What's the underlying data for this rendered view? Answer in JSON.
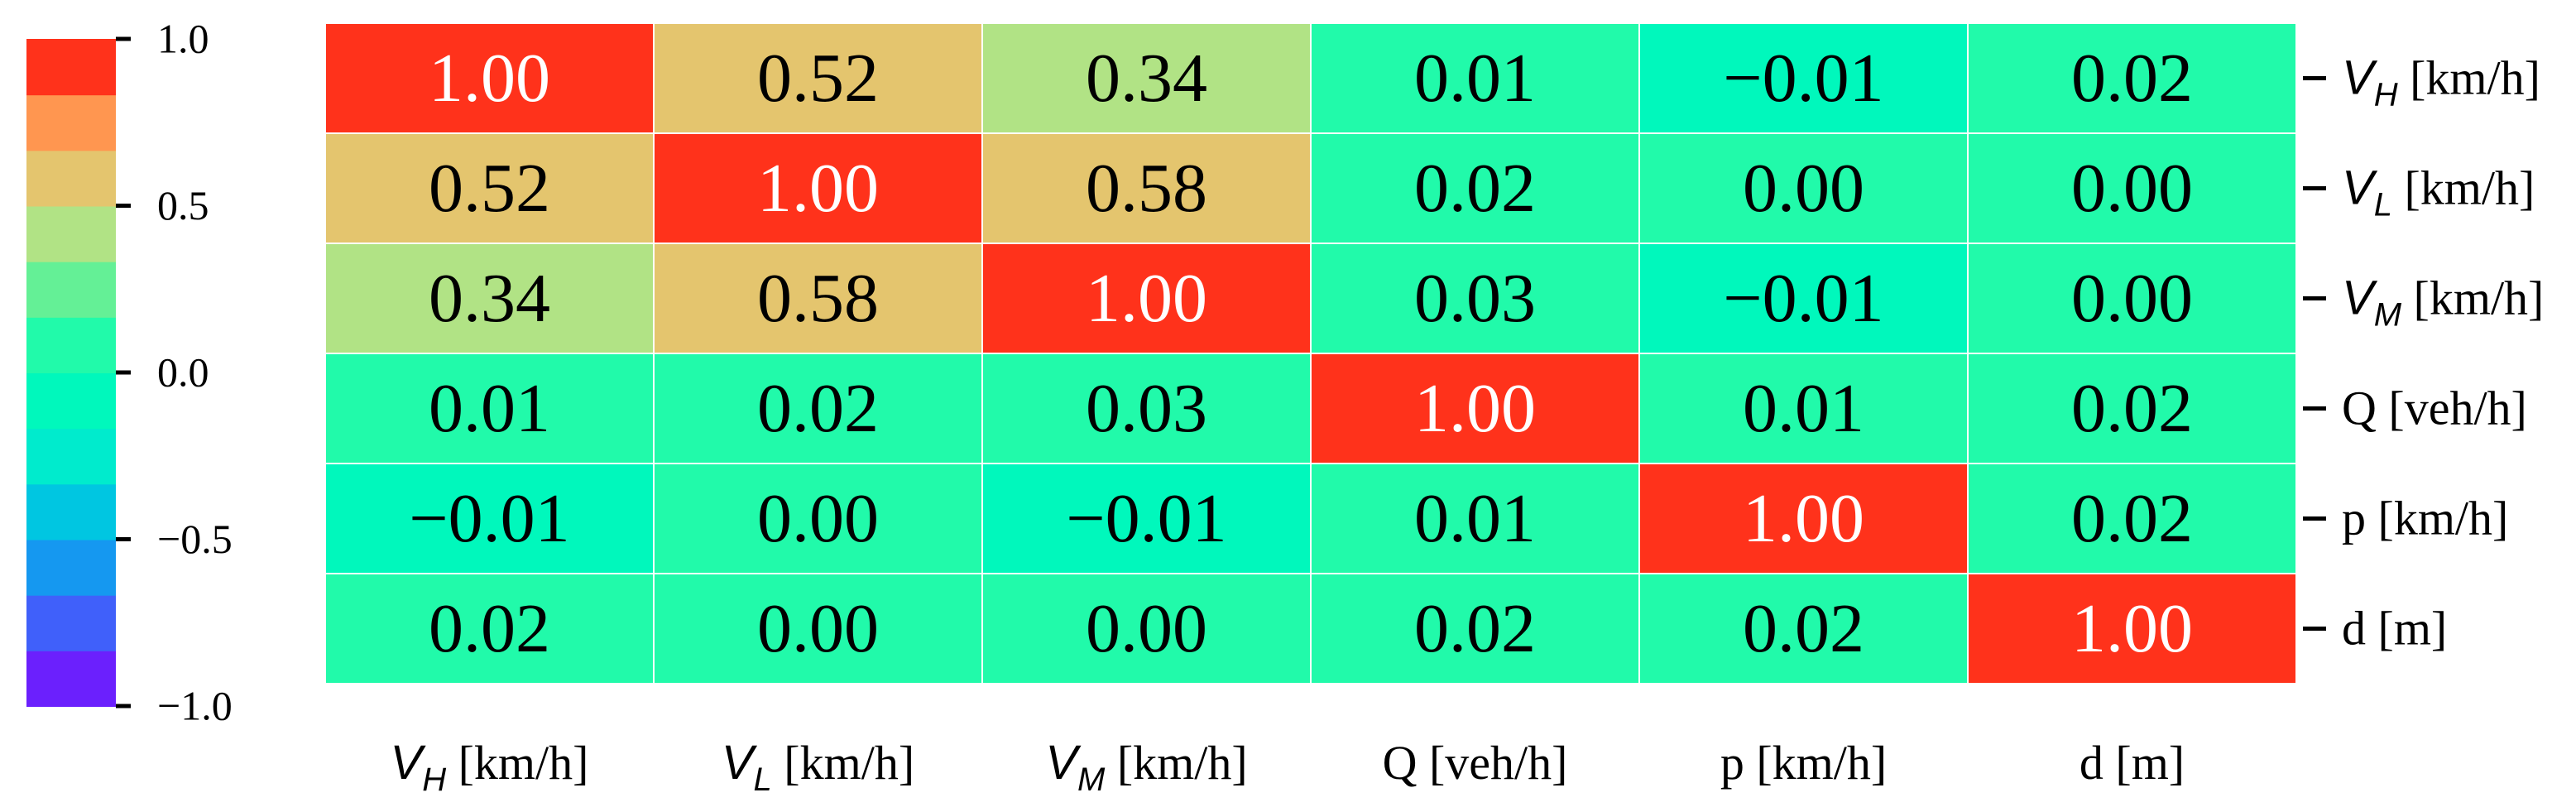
{
  "chart_data": {
    "type": "heatmap",
    "title": "",
    "row_labels": [
      {
        "sym": "V",
        "sub": "H",
        "unit": " [km/h]"
      },
      {
        "sym": "V",
        "sub": "L",
        "unit": " [km/h]"
      },
      {
        "sym": "V",
        "sub": "M",
        "unit": " [km/h]"
      },
      {
        "sym": "",
        "sub": "",
        "unit": "Q [veh/h]"
      },
      {
        "sym": "",
        "sub": "",
        "unit": "p [km/h]"
      },
      {
        "sym": "",
        "sub": "",
        "unit": "d [m]"
      }
    ],
    "col_labels": [
      {
        "sym": "V",
        "sub": "H",
        "unit": " [km/h]"
      },
      {
        "sym": "V",
        "sub": "L",
        "unit": " [km/h]"
      },
      {
        "sym": "V",
        "sub": "M",
        "unit": " [km/h]"
      },
      {
        "sym": "",
        "sub": "",
        "unit": "Q [veh/h]"
      },
      {
        "sym": "",
        "sub": "",
        "unit": "p [km/h]"
      },
      {
        "sym": "",
        "sub": "",
        "unit": "d [m]"
      }
    ],
    "values": [
      [
        1.0,
        0.52,
        0.34,
        0.01,
        -0.01,
        0.02
      ],
      [
        0.52,
        1.0,
        0.58,
        0.02,
        0.0,
        0.0
      ],
      [
        0.34,
        0.58,
        1.0,
        0.03,
        -0.01,
        0.0
      ],
      [
        0.01,
        0.02,
        0.03,
        1.0,
        0.01,
        0.02
      ],
      [
        -0.01,
        0.0,
        -0.01,
        0.01,
        1.0,
        0.02
      ],
      [
        0.02,
        0.0,
        0.0,
        0.02,
        0.02,
        1.0
      ]
    ],
    "cell_labels": [
      [
        "1.00",
        "0.52",
        "0.34",
        "0.01",
        "−0.01",
        "0.02"
      ],
      [
        "0.52",
        "1.00",
        "0.58",
        "0.02",
        "0.00",
        "0.00"
      ],
      [
        "0.34",
        "0.58",
        "1.00",
        "0.03",
        "−0.01",
        "0.00"
      ],
      [
        "0.01",
        "0.02",
        "0.03",
        "1.00",
        "0.01",
        "0.02"
      ],
      [
        "−0.01",
        "0.00",
        "−0.01",
        "0.01",
        "1.00",
        "0.02"
      ],
      [
        "0.02",
        "0.00",
        "0.00",
        "0.02",
        "0.02",
        "1.00"
      ]
    ],
    "colorbar": {
      "range": [
        -1.0,
        1.0
      ],
      "ticks": [
        1.0,
        0.5,
        0.0,
        -0.5,
        -1.0
      ],
      "tick_labels": [
        "1.0",
        "0.5",
        "0.0",
        "−0.5",
        "−1.0"
      ],
      "colormap": "rainbow",
      "levels": 12,
      "location": "left"
    }
  },
  "colors": {
    "cell_border": "#ffffff",
    "axis": "#000000",
    "text_dark": "#000000",
    "text_light": "#ffffff"
  }
}
